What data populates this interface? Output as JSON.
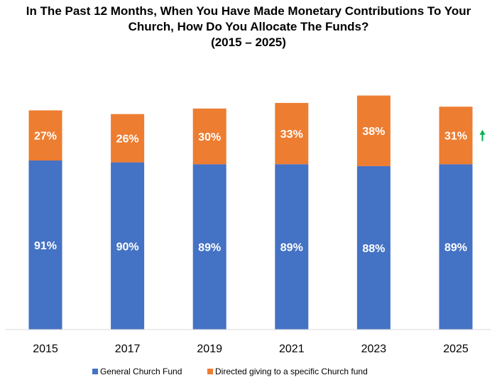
{
  "chart_data": {
    "type": "bar",
    "stacked": true,
    "title_lines": [
      "In The Past 12 Months, When You Have Made Monetary Contributions To Your",
      "Church, How Do You Allocate The Funds?",
      "(2015 – 2025)"
    ],
    "categories": [
      "2015",
      "2017",
      "2019",
      "2021",
      "2023",
      "2025"
    ],
    "series": [
      {
        "name": "General Church Fund",
        "color": "#4472C4",
        "values": [
          91,
          90,
          89,
          89,
          88,
          89
        ],
        "labels": [
          "91%",
          "90%",
          "89%",
          "89%",
          "88%",
          "89%"
        ]
      },
      {
        "name": "Directed giving to a specific Church fund",
        "color": "#ED7D31",
        "values": [
          27,
          26,
          30,
          33,
          38,
          31
        ],
        "labels": [
          "27%",
          "26%",
          "30%",
          "33%",
          "38%",
          "31%"
        ]
      }
    ],
    "ylim": [
      0,
      130
    ],
    "annotations": [
      {
        "type": "arrow-up",
        "category": "2025",
        "color": "#00B050"
      }
    ]
  }
}
